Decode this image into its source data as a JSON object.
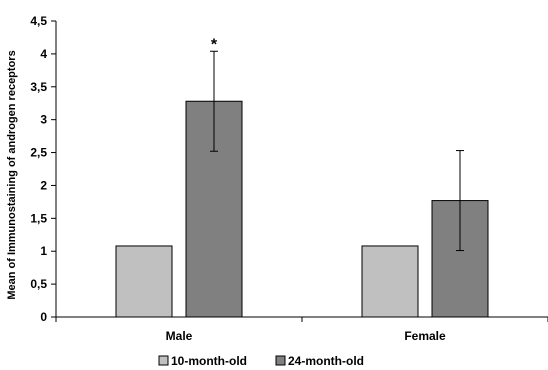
{
  "chart_data": {
    "type": "bar",
    "title": "",
    "xlabel": "",
    "ylabel": "Mean of Immunostaining of androgen receptors",
    "ylim": [
      0,
      4.5
    ],
    "yticks": [
      "0",
      "0,5",
      "1",
      "1,5",
      "2",
      "2,5",
      "3",
      "3,5",
      "4",
      "4,5"
    ],
    "categories": [
      "Male",
      "Female"
    ],
    "series": [
      {
        "name": "10-month-old",
        "values": [
          1.08,
          1.08
        ],
        "error": [
          null,
          null
        ],
        "color": "#c0c0c0"
      },
      {
        "name": "24-month-old",
        "values": [
          3.28,
          1.77
        ],
        "error": [
          0.76,
          0.76
        ],
        "color": "#808080"
      }
    ],
    "annotations": [
      {
        "text": "*",
        "category": "Male",
        "series": "24-month-old"
      }
    ],
    "grid": false,
    "legend": "bottom"
  }
}
